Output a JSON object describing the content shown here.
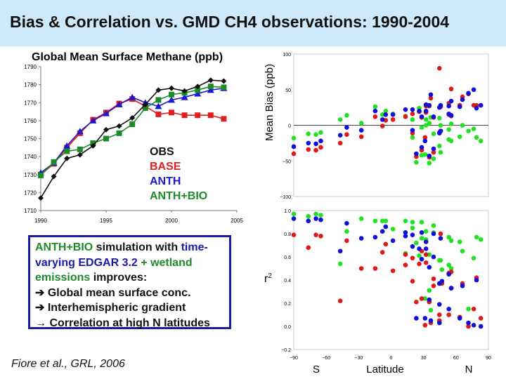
{
  "title": "Bias & Correlation vs. GMD CH4 observations: 1990-2004",
  "colors": {
    "title_bg": "#cde9fb",
    "OBS": "#111111",
    "BASE": "#e02020",
    "ANTH": "#1a1ad0",
    "ANTH+BIO": "#1e8a2a",
    "scatter_base": "#e01818",
    "scatter_anth": "#1010d8",
    "scatter_anth_bio": "#22e022",
    "box_border": "#1a1aa8"
  },
  "note": {
    "p1": "ANTH+BIO",
    "p2": " simulation with ",
    "p3": "time-varying EDGAR 3.2",
    "p4": " + wetland emissions",
    "p5": " improves:",
    "l1": "➔ Global mean surface conc.",
    "l2": "➔ Interhemispheric gradient",
    "l3": "→ Correlation at high N latitudes"
  },
  "citation": "Fiore et al., GRL, 2006",
  "chart_data": [
    {
      "type": "line",
      "title": "Global Mean Surface Methane (ppb)",
      "xlim": [
        1990,
        2005
      ],
      "ylim": [
        1710,
        1790
      ],
      "xticks": [
        1990,
        1995,
        2000,
        2005
      ],
      "yticks": [
        1710,
        1720,
        1730,
        1740,
        1750,
        1760,
        1770,
        1780,
        1790
      ],
      "legend_placement": "inside-center-right",
      "x": [
        1990,
        1991,
        1992,
        1993,
        1994,
        1995,
        1996,
        1997,
        1998,
        1999,
        2000,
        2001,
        2002,
        2003,
        2004
      ],
      "series": [
        {
          "name": "OBS",
          "marker": "diamond",
          "values": [
            1717,
            1729,
            1739,
            1741,
            1746,
            1755,
            1757,
            1761.5,
            1769,
            1777,
            1778,
            1776.5,
            1779,
            1782.5,
            1782
          ]
        },
        {
          "name": "BASE",
          "marker": "square",
          "values": [
            1730,
            1736,
            1745,
            1753,
            1760.5,
            1764.5,
            1769.5,
            1772,
            1768,
            1763.5,
            1764.5,
            1763,
            1763,
            1763,
            1761
          ]
        },
        {
          "name": "ANTH",
          "marker": "triangle",
          "values": [
            1731,
            1736.5,
            1746,
            1754,
            1760,
            1764,
            1769,
            1773,
            1770,
            1768,
            1771.5,
            1773,
            1775,
            1777,
            1778
          ]
        },
        {
          "name": "ANTH+BIO",
          "marker": "square",
          "values": [
            1729.5,
            1737,
            1743,
            1744,
            1747.5,
            1750,
            1753,
            1758,
            1767,
            1771.5,
            1774.5,
            1775.5,
            1777,
            1779,
            1778.5
          ]
        }
      ]
    },
    {
      "type": "scatter",
      "ylabel": "Mean Bias (ppb)",
      "xlim": [
        -90,
        90
      ],
      "ylim": [
        -100,
        100
      ],
      "yticks": [
        -100,
        -50,
        0,
        50,
        100
      ],
      "zero_line": true,
      "columns": [
        "latitude",
        "BASE",
        "ANTH",
        "ANTH+BIO"
      ],
      "points": [
        [
          -90,
          -40,
          -30,
          -18
        ],
        [
          -76.5,
          -34,
          -25,
          -12
        ],
        [
          -69.5,
          -35,
          -26,
          -13
        ],
        [
          -65,
          -31,
          -22,
          -10
        ],
        [
          -47,
          -25,
          -14,
          8
        ],
        [
          -41,
          -13,
          -3,
          14
        ],
        [
          -27.5,
          -16,
          -7,
          3
        ],
        [
          -14.7,
          12,
          20,
          26
        ],
        [
          -8,
          -1,
          8,
          15
        ],
        [
          -5,
          7,
          15,
          20
        ],
        [
          1.7,
          8,
          15,
          16
        ],
        [
          13.3,
          12,
          22,
          13
        ],
        [
          19.8,
          16,
          22,
          8
        ],
        [
          19.8,
          -11,
          -7,
          -17
        ],
        [
          23.3,
          -44,
          -40,
          -52
        ],
        [
          26,
          19,
          20,
          24
        ],
        [
          28.3,
          11,
          12,
          -3
        ],
        [
          28.3,
          -35,
          -31,
          -42
        ],
        [
          31.4,
          -17,
          -22,
          -41
        ],
        [
          32.3,
          27,
          29,
          8
        ],
        [
          32.3,
          18,
          20,
          0
        ],
        [
          35.3,
          27,
          28,
          3
        ],
        [
          35.3,
          -45,
          -43,
          -53
        ],
        [
          36.7,
          38,
          43,
          11
        ],
        [
          39.3,
          11,
          12,
          -12
        ],
        [
          39.3,
          -38,
          -33,
          -47
        ],
        [
          44.7,
          80,
          25,
          10
        ],
        [
          44.7,
          -10,
          -11,
          -29
        ],
        [
          45.8,
          26,
          28,
          0
        ],
        [
          45.8,
          -8,
          -8,
          -38
        ],
        [
          53.4,
          31,
          27,
          -6
        ],
        [
          53.4,
          15,
          16,
          -20
        ],
        [
          55.6,
          51,
          34,
          2
        ],
        [
          55.6,
          13,
          14,
          -22
        ],
        [
          63.5,
          28,
          26,
          -16
        ],
        [
          66,
          40,
          36,
          0
        ],
        [
          71.5,
          44,
          45,
          -8
        ],
        [
          76.4,
          28,
          50,
          -5
        ],
        [
          79,
          28,
          24,
          -17
        ],
        [
          83,
          28,
          28,
          -22
        ]
      ]
    },
    {
      "type": "scatter",
      "ylabel": "r2",
      "xlabel": "Latitude",
      "xlabel_left": "S",
      "xlabel_right": "N",
      "xlim": [
        -90,
        90
      ],
      "ylim": [
        -0.2,
        1.0
      ],
      "xticks": [
        -90,
        -60,
        -30,
        0,
        30,
        60,
        90
      ],
      "yticks": [
        -0.2,
        0.0,
        0.2,
        0.4,
        0.6,
        0.8,
        1.0
      ],
      "columns": [
        "latitude",
        "BASE",
        "ANTH",
        "ANTH+BIO"
      ],
      "points": [
        [
          -90,
          0.79,
          0.93,
          0.97
        ],
        [
          -76.5,
          0.68,
          0.91,
          0.95
        ],
        [
          -69.5,
          0.79,
          0.93,
          0.97
        ],
        [
          -65,
          0.78,
          0.92,
          0.96
        ],
        [
          -47,
          0.22,
          0.65,
          0.54
        ],
        [
          -41,
          0.74,
          0.89,
          0.82
        ],
        [
          -27.5,
          0.5,
          0.76,
          0.93
        ],
        [
          -14.7,
          0.5,
          0.77,
          0.91
        ],
        [
          -8,
          0.64,
          0.82,
          0.91
        ],
        [
          -5,
          0.71,
          0.86,
          0.91
        ],
        [
          1.7,
          0.48,
          0.74,
          0.84
        ],
        [
          13.3,
          0.53,
          0.81,
          0.91
        ],
        [
          13.3,
          0.62,
          0.78,
          0.63
        ],
        [
          19.8,
          0.39,
          0.79,
          0.9
        ],
        [
          19.8,
          0.59,
          0.69,
          0.85
        ],
        [
          23.3,
          0.21,
          0.07,
          0.72
        ],
        [
          26,
          0.54,
          0.67,
          0.61
        ],
        [
          28.3,
          0.65,
          0.81,
          0.9
        ],
        [
          28.3,
          0.24,
          0.58,
          0.76
        ],
        [
          31.4,
          0.01,
          0.07,
          0.24
        ],
        [
          32.3,
          0.62,
          0.73,
          0.82
        ],
        [
          32.3,
          0.55,
          0.67,
          0.75
        ],
        [
          35.3,
          0.22,
          0.51,
          0.31
        ],
        [
          35.3,
          0.21,
          0.23,
          0.62
        ],
        [
          36.7,
          0.03,
          0.05,
          0.14
        ],
        [
          39.3,
          0.41,
          0.8,
          0.81
        ],
        [
          39.3,
          0.35,
          0.6,
          0.87
        ],
        [
          44.7,
          0.1,
          0.19,
          0.57
        ],
        [
          44.7,
          0.05,
          0.03,
          0.04
        ],
        [
          44.7,
          0.37,
          0.37,
          0.37
        ],
        [
          45.8,
          0.8,
          0.76,
          0.57
        ],
        [
          47,
          0.37,
          0.39,
          0.49
        ],
        [
          53.4,
          0.1,
          0.45,
          0.77
        ],
        [
          53.4,
          0.46,
          0.15,
          0.53
        ],
        [
          55.6,
          0.47,
          0.33,
          0.74
        ],
        [
          55.6,
          0.33,
          0.33,
          0.5
        ],
        [
          63.5,
          0.08,
          0.07,
          0.73
        ],
        [
          66,
          0.37,
          0.35,
          0.65
        ],
        [
          71.5,
          0.0,
          0.03,
          0.15
        ],
        [
          76.4,
          0.15,
          0.01,
          0.59
        ],
        [
          79,
          0.42,
          0.4,
          0.77
        ],
        [
          83,
          0.07,
          0.0,
          0.75
        ]
      ]
    }
  ]
}
